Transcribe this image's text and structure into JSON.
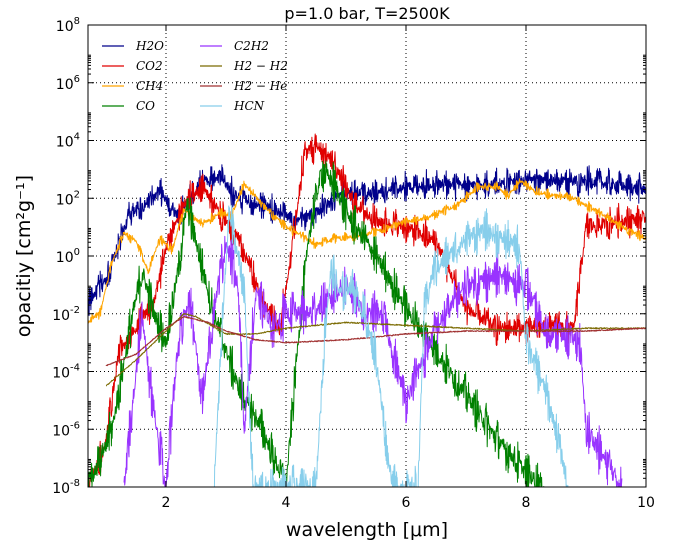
{
  "chart_data": {
    "type": "line",
    "title": "p=1.0 bar, T=2500K",
    "xlabel": "wavelength [μm]",
    "ylabel": "opacitiy [cm²g⁻¹]",
    "xlim": [
      0.7,
      10
    ],
    "ylim_log10": [
      -8,
      8
    ],
    "x_ticks": [
      2,
      4,
      6,
      8,
      10
    ],
    "y_ticks": [
      {
        "exp": -8,
        "label": "10-8"
      },
      {
        "exp": -6,
        "label": "10-6"
      },
      {
        "exp": -4,
        "label": "10-4"
      },
      {
        "exp": -2,
        "label": "10-2"
      },
      {
        "exp": 0,
        "label": "100"
      },
      {
        "exp": 2,
        "label": "102"
      },
      {
        "exp": 4,
        "label": "104"
      },
      {
        "exp": 6,
        "label": "106"
      },
      {
        "exp": 8,
        "label": "108"
      }
    ],
    "grid": true,
    "y_scale": "log",
    "legend_position": "top-left",
    "series": [
      {
        "name": "H2O",
        "color": "#00008b",
        "noise": 0.35,
        "points": [
          [
            0.7,
            -1.6
          ],
          [
            1.0,
            -0.8
          ],
          [
            1.2,
            0.3
          ],
          [
            1.4,
            1.5
          ],
          [
            1.6,
            1.7
          ],
          [
            1.9,
            2.2
          ],
          [
            2.2,
            1.4
          ],
          [
            2.6,
            2.6
          ],
          [
            2.9,
            2.7
          ],
          [
            3.2,
            2.0
          ],
          [
            3.6,
            1.8
          ],
          [
            4.0,
            1.4
          ],
          [
            4.2,
            1.2
          ],
          [
            4.5,
            1.5
          ],
          [
            5.0,
            2.2
          ],
          [
            5.5,
            2.2
          ],
          [
            6.0,
            2.4
          ],
          [
            6.5,
            2.5
          ],
          [
            7.0,
            2.4
          ],
          [
            8.0,
            2.6
          ],
          [
            9.0,
            2.6
          ],
          [
            10.0,
            2.3
          ]
        ]
      },
      {
        "name": "CO2",
        "color": "#e00000",
        "noise": 0.4,
        "points": [
          [
            0.7,
            -8
          ],
          [
            1.0,
            -6.5
          ],
          [
            1.2,
            -3.5
          ],
          [
            1.5,
            -2.5
          ],
          [
            1.8,
            -1.6
          ],
          [
            2.0,
            0.3
          ],
          [
            2.3,
            1.8
          ],
          [
            2.6,
            2.4
          ],
          [
            2.8,
            1.8
          ],
          [
            3.2,
            0.7
          ],
          [
            3.6,
            -1.5
          ],
          [
            3.9,
            -2.5
          ],
          [
            4.1,
            0.3
          ],
          [
            4.3,
            3.5
          ],
          [
            4.5,
            3.9
          ],
          [
            4.8,
            3.2
          ],
          [
            5.1,
            1.9
          ],
          [
            5.5,
            1.2
          ],
          [
            6.0,
            1.0
          ],
          [
            6.5,
            0.5
          ],
          [
            7.0,
            -1.8
          ],
          [
            7.5,
            -2.5
          ],
          [
            8.0,
            -2.5
          ],
          [
            8.5,
            -2.4
          ],
          [
            8.8,
            -2.5
          ],
          [
            9.0,
            1.0
          ],
          [
            9.5,
            1.2
          ],
          [
            10.0,
            1.3
          ]
        ]
      },
      {
        "name": "CH4",
        "color": "#ffa500",
        "noise": 0.12,
        "points": [
          [
            0.7,
            -2.2
          ],
          [
            0.9,
            -2.0
          ],
          [
            1.1,
            -0.2
          ],
          [
            1.3,
            0.8
          ],
          [
            1.5,
            0.5
          ],
          [
            1.7,
            -0.5
          ],
          [
            1.9,
            0.6
          ],
          [
            2.1,
            0.2
          ],
          [
            2.3,
            1.6
          ],
          [
            2.6,
            1.1
          ],
          [
            2.9,
            1.5
          ],
          [
            3.1,
            1.4
          ],
          [
            3.3,
            2.5
          ],
          [
            3.6,
            1.8
          ],
          [
            4.0,
            1.0
          ],
          [
            4.2,
            0.8
          ],
          [
            4.5,
            0.4
          ],
          [
            4.8,
            0.6
          ],
          [
            5.2,
            0.7
          ],
          [
            5.6,
            0.9
          ],
          [
            6.0,
            1.2
          ],
          [
            6.3,
            1.3
          ],
          [
            6.8,
            1.7
          ],
          [
            7.2,
            2.4
          ],
          [
            7.5,
            2.4
          ],
          [
            7.7,
            2.1
          ],
          [
            7.9,
            2.6
          ],
          [
            8.2,
            2.2
          ],
          [
            8.8,
            2.0
          ],
          [
            9.3,
            1.4
          ],
          [
            9.7,
            0.9
          ],
          [
            10.0,
            0.6
          ]
        ]
      },
      {
        "name": "CO",
        "color": "#008000",
        "noise": 0.5,
        "points": [
          [
            0.7,
            -8
          ],
          [
            1.1,
            -6
          ],
          [
            1.4,
            -2.5
          ],
          [
            1.6,
            -0.5
          ],
          [
            1.8,
            -2.0
          ],
          [
            2.0,
            -3.0
          ],
          [
            2.2,
            -0.5
          ],
          [
            2.35,
            1.8
          ],
          [
            2.5,
            0.5
          ],
          [
            2.8,
            -2.0
          ],
          [
            3.2,
            -4.5
          ],
          [
            3.6,
            -6.0
          ],
          [
            4.0,
            -8
          ],
          [
            4.2,
            -3.0
          ],
          [
            4.4,
            1.0
          ],
          [
            4.6,
            3.0
          ],
          [
            4.8,
            2.5
          ],
          [
            5.0,
            1.5
          ],
          [
            5.5,
            0.0
          ],
          [
            6.0,
            -1.8
          ],
          [
            6.5,
            -3.3
          ],
          [
            7.0,
            -4.8
          ],
          [
            7.5,
            -6.3
          ],
          [
            8.0,
            -7.5
          ],
          [
            8.3,
            -8
          ]
        ]
      },
      {
        "name": "C2H2",
        "color": "#9933ff",
        "noise": 0.55,
        "points": [
          [
            1.3,
            -8
          ],
          [
            1.5,
            -4.0
          ],
          [
            1.6,
            -1.8
          ],
          [
            1.7,
            -4.0
          ],
          [
            2.0,
            -8
          ],
          [
            2.2,
            -3.0
          ],
          [
            2.4,
            -1.5
          ],
          [
            2.6,
            -5.0
          ],
          [
            2.8,
            -1.8
          ],
          [
            3.0,
            0.5
          ],
          [
            3.2,
            -1.0
          ],
          [
            3.3,
            -6.0
          ],
          [
            3.5,
            -1.3
          ],
          [
            3.8,
            -2.5
          ],
          [
            4.0,
            -2.0
          ],
          [
            4.4,
            -2.0
          ],
          [
            4.7,
            -1.5
          ],
          [
            5.0,
            -1.0
          ],
          [
            5.3,
            -2.0
          ],
          [
            5.6,
            -2.0
          ],
          [
            6.0,
            -5.0
          ],
          [
            6.5,
            -2.5
          ],
          [
            7.0,
            -1.0
          ],
          [
            7.5,
            -0.7
          ],
          [
            8.0,
            -1.0
          ],
          [
            8.3,
            -2.6
          ],
          [
            8.7,
            -2.8
          ],
          [
            8.9,
            -3.0
          ],
          [
            9.0,
            -6.0
          ],
          [
            9.3,
            -7.0
          ],
          [
            9.6,
            -8
          ]
        ]
      },
      {
        "name": "H2-H2",
        "color": "#7a6a00",
        "noise": 0.02,
        "points": [
          [
            1.0,
            -4.5
          ],
          [
            1.5,
            -3.6
          ],
          [
            2.0,
            -2.6
          ],
          [
            2.3,
            -2.0
          ],
          [
            2.5,
            -2.1
          ],
          [
            3.0,
            -2.7
          ],
          [
            3.5,
            -2.7
          ],
          [
            4.0,
            -2.5
          ],
          [
            5.0,
            -2.3
          ],
          [
            6.0,
            -2.4
          ],
          [
            7.0,
            -2.5
          ],
          [
            8.0,
            -2.6
          ],
          [
            9.0,
            -2.5
          ],
          [
            10.0,
            -2.5
          ]
        ]
      },
      {
        "name": "H2-He",
        "color": "#a03030",
        "noise": 0.02,
        "points": [
          [
            1.0,
            -3.8
          ],
          [
            1.5,
            -3.4
          ],
          [
            2.0,
            -2.5
          ],
          [
            2.3,
            -2.1
          ],
          [
            2.7,
            -2.3
          ],
          [
            3.0,
            -2.6
          ],
          [
            3.5,
            -2.9
          ],
          [
            4.0,
            -3.0
          ],
          [
            5.0,
            -2.9
          ],
          [
            6.0,
            -2.7
          ],
          [
            7.0,
            -2.6
          ],
          [
            8.0,
            -2.6
          ],
          [
            9.0,
            -2.6
          ],
          [
            10.0,
            -2.5
          ]
        ]
      },
      {
        "name": "HCN",
        "color": "#87ceeb",
        "noise": 0.5,
        "points": [
          [
            2.8,
            -8
          ],
          [
            2.95,
            -2.0
          ],
          [
            3.05,
            1.5
          ],
          [
            3.15,
            0.5
          ],
          [
            3.3,
            -1.0
          ],
          [
            3.45,
            -8
          ],
          [
            4.5,
            -8
          ],
          [
            4.65,
            -2.5
          ],
          [
            4.75,
            -0.5
          ],
          [
            4.9,
            -1.3
          ],
          [
            5.1,
            -1.0
          ],
          [
            5.3,
            -2.0
          ],
          [
            5.5,
            -3.5
          ],
          [
            5.7,
            -7.0
          ],
          [
            5.8,
            -8
          ],
          [
            6.2,
            -8
          ],
          [
            6.3,
            -2.0
          ],
          [
            6.45,
            -0.5
          ],
          [
            6.7,
            0.0
          ],
          [
            7.0,
            0.6
          ],
          [
            7.3,
            0.9
          ],
          [
            7.6,
            0.6
          ],
          [
            7.9,
            0.3
          ],
          [
            8.0,
            -3.0
          ],
          [
            8.3,
            -4.5
          ],
          [
            8.5,
            -6.0
          ],
          [
            8.7,
            -8
          ]
        ]
      }
    ],
    "legend": [
      {
        "label": "H2O",
        "color": "#00008b"
      },
      {
        "label": "CO2",
        "color": "#e00000"
      },
      {
        "label": "CH4",
        "color": "#ffa500"
      },
      {
        "label": "CO",
        "color": "#008000"
      },
      {
        "label": "C2H2",
        "color": "#9933ff"
      },
      {
        "label": "H2 − H2",
        "color": "#7a6a00"
      },
      {
        "label": "H2 − He",
        "color": "#a03030"
      },
      {
        "label": "HCN",
        "color": "#87ceeb"
      }
    ]
  }
}
